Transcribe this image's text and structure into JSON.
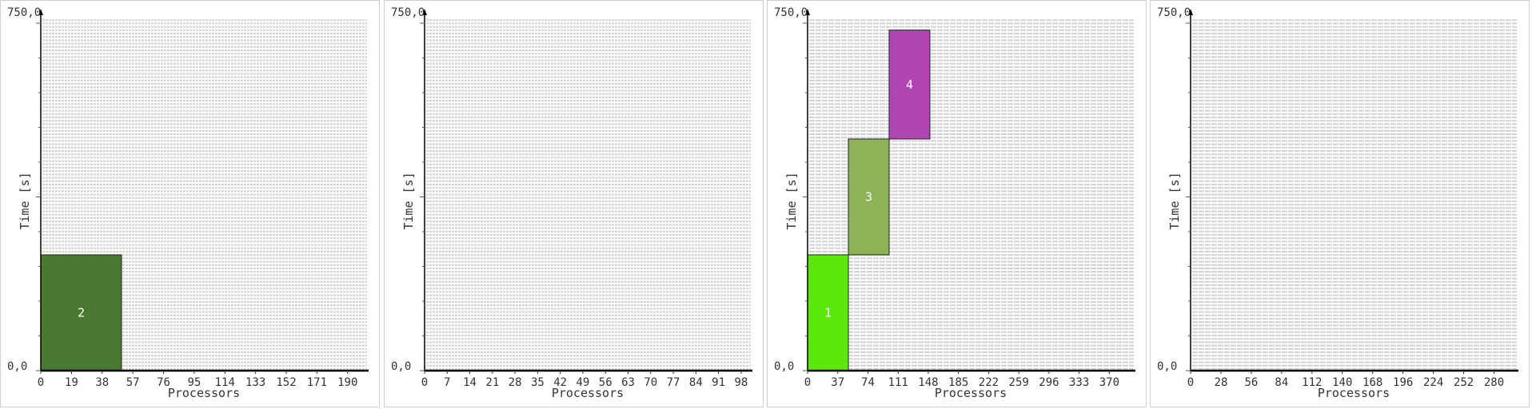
{
  "chart_data": [
    {
      "type": "bar",
      "title": "",
      "xlabel": "Processors",
      "ylabel": "Time [s]",
      "y_top_label": "750,0",
      "y_origin_label": "0,0",
      "xlim": [
        0,
        202
      ],
      "ylim": [
        0,
        750
      ],
      "x_ticks": [
        "0",
        "19",
        "38",
        "57",
        "76",
        "95",
        "114",
        "133",
        "152",
        "171",
        "190"
      ],
      "grid": "processor slots",
      "jobs": [
        {
          "id": "2",
          "x_start": 0,
          "x_end": 50,
          "t_start": 0,
          "t_end": 250,
          "color": "#4a7a32"
        }
      ]
    },
    {
      "type": "bar",
      "title": "",
      "xlabel": "Processors",
      "ylabel": "Time [s]",
      "y_top_label": "750,0",
      "y_origin_label": "0,0",
      "xlim": [
        0,
        101
      ],
      "ylim": [
        0,
        750
      ],
      "x_ticks": [
        "0",
        "7",
        "14",
        "21",
        "28",
        "35",
        "42",
        "49",
        "56",
        "63",
        "70",
        "77",
        "84",
        "91",
        "98"
      ],
      "grid": "processor slots",
      "jobs": []
    },
    {
      "type": "bar",
      "title": "",
      "xlabel": "Processors",
      "ylabel": "Time [s]",
      "y_top_label": "750,0",
      "y_origin_label": "0,0",
      "xlim": [
        0,
        400
      ],
      "ylim": [
        0,
        750
      ],
      "x_ticks": [
        "0",
        "37",
        "74",
        "111",
        "148",
        "185",
        "222",
        "259",
        "296",
        "333",
        "370"
      ],
      "grid": "processor slots",
      "jobs": [
        {
          "id": "1",
          "x_start": 0,
          "x_end": 50,
          "t_start": 0,
          "t_end": 250,
          "color": "#5ee80a"
        },
        {
          "id": "3",
          "x_start": 50,
          "x_end": 100,
          "t_start": 250,
          "t_end": 500,
          "color": "#8db454"
        },
        {
          "id": "4",
          "x_start": 100,
          "x_end": 150,
          "t_start": 500,
          "t_end": 735,
          "color": "#b045b4"
        }
      ]
    },
    {
      "type": "bar",
      "title": "",
      "xlabel": "Processors",
      "ylabel": "Time [s]",
      "y_top_label": "750,0",
      "y_origin_label": "0,0",
      "xlim": [
        0,
        301
      ],
      "ylim": [
        0,
        750
      ],
      "x_ticks": [
        "0",
        "28",
        "56",
        "84",
        "112",
        "140",
        "168",
        "196",
        "224",
        "252",
        "280"
      ],
      "grid": "processor slots",
      "jobs": []
    }
  ]
}
